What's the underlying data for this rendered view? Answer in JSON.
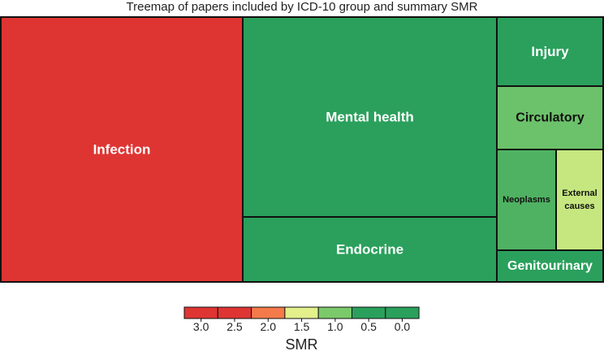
{
  "chart_data": {
    "type": "treemap",
    "title": "Treemap of papers included by ICD-10 group and summary SMR",
    "tiles": [
      {
        "name": "Infection",
        "smr_color": "#de3533",
        "text_color": "#ffffff"
      },
      {
        "name": "Mental health",
        "smr_color": "#2aa05c",
        "text_color": "#ffffff"
      },
      {
        "name": "Endocrine",
        "smr_color": "#2aa05c",
        "text_color": "#ffffff"
      },
      {
        "name": "Injury",
        "smr_color": "#2aa05c",
        "text_color": "#ffffff"
      },
      {
        "name": "Circulatory",
        "smr_color": "#6cc26a",
        "text_color": "#111111"
      },
      {
        "name": "Neoplasms",
        "smr_color": "#4fb262",
        "text_color": "#111111"
      },
      {
        "name": "External causes",
        "name_lines": [
          "External",
          "causes"
        ],
        "smr_color": "#c6e77f",
        "text_color": "#111111"
      },
      {
        "name": "Genitourinary",
        "smr_color": "#2aa05c",
        "text_color": "#ffffff"
      }
    ],
    "legend": {
      "title": "SMR",
      "ticks": [
        "3.0",
        "2.5",
        "2.0",
        "1.5",
        "1.0",
        "0.5",
        "0.0"
      ],
      "colors": [
        "#de3533",
        "#de3533",
        "#f47a4a",
        "#e3f08c",
        "#7cc96b",
        "#2aa05c",
        "#2aa05c"
      ]
    }
  }
}
